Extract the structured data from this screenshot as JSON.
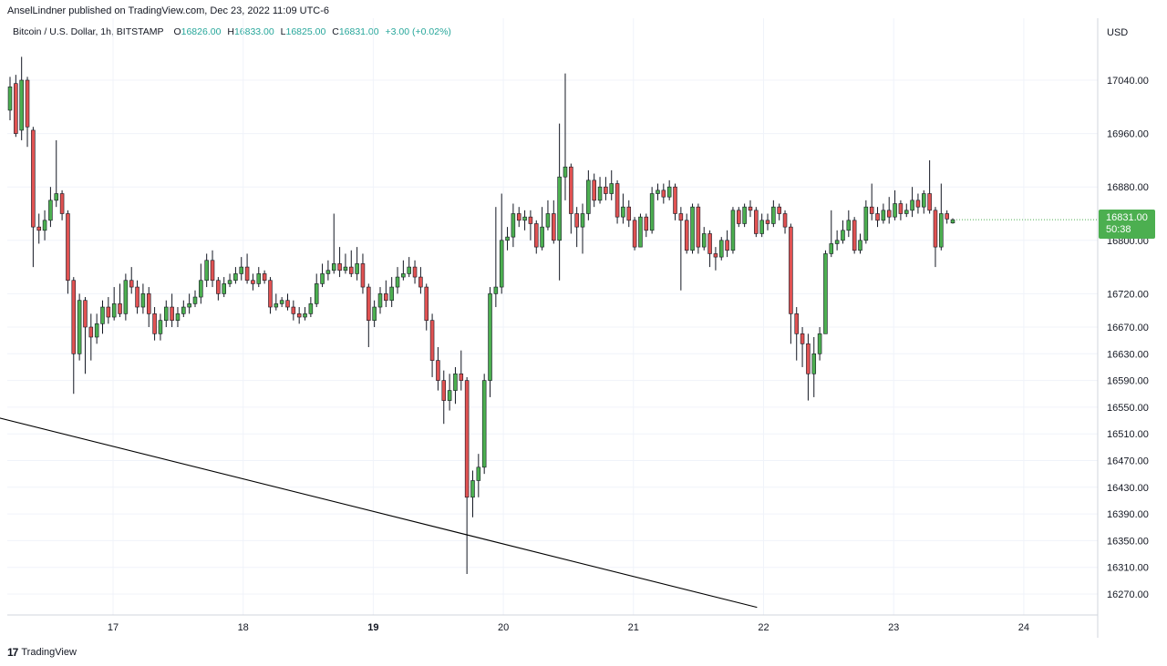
{
  "header": {
    "publisher_line": "AnselLindner published on TradingView.com, Dec 23, 2022 11:09 UTC-6"
  },
  "legend": {
    "symbol": "Bitcoin / U.S. Dollar, 1h, BITSTAMP",
    "open_label": "O",
    "open": "16826.00",
    "high_label": "H",
    "high": "16833.00",
    "low_label": "L",
    "low": "16825.00",
    "close_label": "C",
    "close": "16831.00",
    "change": "+3.00 (+0.02%)"
  },
  "axis": {
    "currency": "USD"
  },
  "last_price": {
    "price": "16831.00",
    "countdown": "50:38"
  },
  "footer": {
    "brand": "TradingView",
    "logo_mark": "17"
  },
  "colors": {
    "up": "#4caf50",
    "down": "#e05252",
    "grid": "#f0f3fa",
    "trendline": "#000000"
  },
  "chart_data": {
    "type": "candlestick",
    "y_ticks": [
      "17040.00",
      "16960.00",
      "16880.00",
      "16800.00",
      "16720.00",
      "16670.00",
      "16630.00",
      "16590.00",
      "16550.00",
      "16510.00",
      "16470.00",
      "16430.00",
      "16390.00",
      "16350.00",
      "16310.00",
      "16270.00"
    ],
    "x_ticks": [
      {
        "label": "17",
        "bold": false
      },
      {
        "label": "18",
        "bold": false
      },
      {
        "label": "19",
        "bold": true
      },
      {
        "label": "20",
        "bold": false
      },
      {
        "label": "21",
        "bold": false
      },
      {
        "label": "22",
        "bold": false
      },
      {
        "label": "23",
        "bold": false
      },
      {
        "label": "24",
        "bold": false
      }
    ],
    "trendline": {
      "from": {
        "day": 16.0,
        "price": 16540
      },
      "to": {
        "day": 21.95,
        "price": 16250
      }
    },
    "candles": [
      {
        "o": 16995,
        "c": 17030,
        "h": 17045,
        "l": 16980
      },
      {
        "o": 17035,
        "c": 16960,
        "h": 17048,
        "l": 16955
      },
      {
        "o": 16965,
        "c": 17040,
        "h": 17075,
        "l": 16950
      },
      {
        "o": 17040,
        "c": 16970,
        "h": 17045,
        "l": 16940
      },
      {
        "o": 16965,
        "c": 16820,
        "h": 16970,
        "l": 16760
      },
      {
        "o": 16820,
        "c": 16815,
        "h": 16840,
        "l": 16795
      },
      {
        "o": 16815,
        "c": 16830,
        "h": 16845,
        "l": 16800
      },
      {
        "o": 16830,
        "c": 16860,
        "h": 16880,
        "l": 16820
      },
      {
        "o": 16860,
        "c": 16870,
        "h": 16950,
        "l": 16850
      },
      {
        "o": 16870,
        "c": 16840,
        "h": 16875,
        "l": 16830
      },
      {
        "o": 16840,
        "c": 16740,
        "h": 16845,
        "l": 16720
      },
      {
        "o": 16740,
        "c": 16630,
        "h": 16745,
        "l": 16570
      },
      {
        "o": 16630,
        "c": 16710,
        "h": 16720,
        "l": 16620
      },
      {
        "o": 16710,
        "c": 16670,
        "h": 16715,
        "l": 16600
      },
      {
        "o": 16670,
        "c": 16655,
        "h": 16690,
        "l": 16620
      },
      {
        "o": 16655,
        "c": 16675,
        "h": 16690,
        "l": 16645
      },
      {
        "o": 16675,
        "c": 16700,
        "h": 16710,
        "l": 16660
      },
      {
        "o": 16700,
        "c": 16685,
        "h": 16715,
        "l": 16675
      },
      {
        "o": 16685,
        "c": 16705,
        "h": 16730,
        "l": 16680
      },
      {
        "o": 16705,
        "c": 16690,
        "h": 16735,
        "l": 16685
      },
      {
        "o": 16690,
        "c": 16740,
        "h": 16750,
        "l": 16680
      },
      {
        "o": 16740,
        "c": 16730,
        "h": 16760,
        "l": 16720
      },
      {
        "o": 16730,
        "c": 16700,
        "h": 16740,
        "l": 16690
      },
      {
        "o": 16700,
        "c": 16720,
        "h": 16735,
        "l": 16690
      },
      {
        "o": 16720,
        "c": 16690,
        "h": 16730,
        "l": 16670
      },
      {
        "o": 16690,
        "c": 16660,
        "h": 16700,
        "l": 16650
      },
      {
        "o": 16660,
        "c": 16680,
        "h": 16690,
        "l": 16650
      },
      {
        "o": 16680,
        "c": 16700,
        "h": 16710,
        "l": 16670
      },
      {
        "o": 16700,
        "c": 16680,
        "h": 16720,
        "l": 16670
      },
      {
        "o": 16680,
        "c": 16690,
        "h": 16700,
        "l": 16670
      },
      {
        "o": 16690,
        "c": 16700,
        "h": 16710,
        "l": 16685
      },
      {
        "o": 16700,
        "c": 16705,
        "h": 16720,
        "l": 16690
      },
      {
        "o": 16705,
        "c": 16715,
        "h": 16725,
        "l": 16700
      },
      {
        "o": 16715,
        "c": 16740,
        "h": 16765,
        "l": 16705
      },
      {
        "o": 16740,
        "c": 16770,
        "h": 16780,
        "l": 16730
      },
      {
        "o": 16770,
        "c": 16740,
        "h": 16785,
        "l": 16730
      },
      {
        "o": 16740,
        "c": 16720,
        "h": 16745,
        "l": 16710
      },
      {
        "o": 16720,
        "c": 16735,
        "h": 16745,
        "l": 16715
      },
      {
        "o": 16735,
        "c": 16740,
        "h": 16750,
        "l": 16730
      },
      {
        "o": 16740,
        "c": 16750,
        "h": 16760,
        "l": 16735
      },
      {
        "o": 16750,
        "c": 16760,
        "h": 16775,
        "l": 16740
      },
      {
        "o": 16760,
        "c": 16740,
        "h": 16780,
        "l": 16735
      },
      {
        "o": 16740,
        "c": 16735,
        "h": 16750,
        "l": 16725
      },
      {
        "o": 16735,
        "c": 16750,
        "h": 16760,
        "l": 16730
      },
      {
        "o": 16750,
        "c": 16740,
        "h": 16755,
        "l": 16735
      },
      {
        "o": 16740,
        "c": 16700,
        "h": 16745,
        "l": 16690
      },
      {
        "o": 16700,
        "c": 16705,
        "h": 16720,
        "l": 16695
      },
      {
        "o": 16705,
        "c": 16710,
        "h": 16715,
        "l": 16700
      },
      {
        "o": 16710,
        "c": 16700,
        "h": 16720,
        "l": 16695
      },
      {
        "o": 16700,
        "c": 16690,
        "h": 16710,
        "l": 16680
      },
      {
        "o": 16690,
        "c": 16685,
        "h": 16700,
        "l": 16675
      },
      {
        "o": 16685,
        "c": 16690,
        "h": 16700,
        "l": 16680
      },
      {
        "o": 16690,
        "c": 16705,
        "h": 16715,
        "l": 16685
      },
      {
        "o": 16705,
        "c": 16735,
        "h": 16750,
        "l": 16700
      },
      {
        "o": 16735,
        "c": 16750,
        "h": 16765,
        "l": 16730
      },
      {
        "o": 16750,
        "c": 16755,
        "h": 16770,
        "l": 16740
      },
      {
        "o": 16755,
        "c": 16765,
        "h": 16840,
        "l": 16750
      },
      {
        "o": 16765,
        "c": 16755,
        "h": 16790,
        "l": 16745
      },
      {
        "o": 16755,
        "c": 16760,
        "h": 16780,
        "l": 16750
      },
      {
        "o": 16760,
        "c": 16750,
        "h": 16785,
        "l": 16745
      },
      {
        "o": 16750,
        "c": 16765,
        "h": 16790,
        "l": 16740
      },
      {
        "o": 16765,
        "c": 16730,
        "h": 16780,
        "l": 16720
      },
      {
        "o": 16730,
        "c": 16680,
        "h": 16735,
        "l": 16640
      },
      {
        "o": 16680,
        "c": 16700,
        "h": 16710,
        "l": 16670
      },
      {
        "o": 16700,
        "c": 16720,
        "h": 16730,
        "l": 16690
      },
      {
        "o": 16720,
        "c": 16710,
        "h": 16740,
        "l": 16700
      },
      {
        "o": 16710,
        "c": 16730,
        "h": 16745,
        "l": 16700
      },
      {
        "o": 16730,
        "c": 16745,
        "h": 16760,
        "l": 16720
      },
      {
        "o": 16745,
        "c": 16750,
        "h": 16770,
        "l": 16740
      },
      {
        "o": 16750,
        "c": 16760,
        "h": 16775,
        "l": 16745
      },
      {
        "o": 16760,
        "c": 16745,
        "h": 16770,
        "l": 16735
      },
      {
        "o": 16745,
        "c": 16730,
        "h": 16760,
        "l": 16720
      },
      {
        "o": 16730,
        "c": 16680,
        "h": 16735,
        "l": 16665
      },
      {
        "o": 16680,
        "c": 16620,
        "h": 16690,
        "l": 16595
      },
      {
        "o": 16620,
        "c": 16590,
        "h": 16640,
        "l": 16575
      },
      {
        "o": 16590,
        "c": 16560,
        "h": 16605,
        "l": 16525
      },
      {
        "o": 16560,
        "c": 16575,
        "h": 16600,
        "l": 16545
      },
      {
        "o": 16575,
        "c": 16600,
        "h": 16610,
        "l": 16555
      },
      {
        "o": 16600,
        "c": 16590,
        "h": 16635,
        "l": 16575
      },
      {
        "o": 16590,
        "c": 16415,
        "h": 16595,
        "l": 16300
      },
      {
        "o": 16415,
        "c": 16440,
        "h": 16455,
        "l": 16385
      },
      {
        "o": 16440,
        "c": 16460,
        "h": 16480,
        "l": 16415
      },
      {
        "o": 16460,
        "c": 16590,
        "h": 16600,
        "l": 16450
      },
      {
        "o": 16590,
        "c": 16720,
        "h": 16730,
        "l": 16565
      },
      {
        "o": 16720,
        "c": 16730,
        "h": 16850,
        "l": 16700
      },
      {
        "o": 16730,
        "c": 16800,
        "h": 16870,
        "l": 16720
      },
      {
        "o": 16800,
        "c": 16805,
        "h": 16820,
        "l": 16785
      },
      {
        "o": 16805,
        "c": 16840,
        "h": 16855,
        "l": 16790
      },
      {
        "o": 16840,
        "c": 16830,
        "h": 16850,
        "l": 16820
      },
      {
        "o": 16830,
        "c": 16835,
        "h": 16845,
        "l": 16815
      },
      {
        "o": 16835,
        "c": 16825,
        "h": 16845,
        "l": 16800
      },
      {
        "o": 16825,
        "c": 16790,
        "h": 16830,
        "l": 16780
      },
      {
        "o": 16790,
        "c": 16820,
        "h": 16850,
        "l": 16785
      },
      {
        "o": 16820,
        "c": 16840,
        "h": 16860,
        "l": 16815
      },
      {
        "o": 16840,
        "c": 16800,
        "h": 16860,
        "l": 16795
      },
      {
        "o": 16800,
        "c": 16895,
        "h": 16975,
        "l": 16740
      },
      {
        "o": 16895,
        "c": 16910,
        "h": 17050,
        "l": 16860
      },
      {
        "o": 16910,
        "c": 16840,
        "h": 16915,
        "l": 16810
      },
      {
        "o": 16840,
        "c": 16820,
        "h": 16850,
        "l": 16790
      },
      {
        "o": 16820,
        "c": 16840,
        "h": 16855,
        "l": 16780
      },
      {
        "o": 16840,
        "c": 16890,
        "h": 16905,
        "l": 16830
      },
      {
        "o": 16890,
        "c": 16860,
        "h": 16900,
        "l": 16850
      },
      {
        "o": 16860,
        "c": 16880,
        "h": 16895,
        "l": 16855
      },
      {
        "o": 16880,
        "c": 16870,
        "h": 16895,
        "l": 16860
      },
      {
        "o": 16870,
        "c": 16885,
        "h": 16905,
        "l": 16860
      },
      {
        "o": 16885,
        "c": 16835,
        "h": 16890,
        "l": 16825
      },
      {
        "o": 16835,
        "c": 16850,
        "h": 16870,
        "l": 16825
      },
      {
        "o": 16850,
        "c": 16830,
        "h": 16860,
        "l": 16820
      },
      {
        "o": 16830,
        "c": 16790,
        "h": 16835,
        "l": 16785
      },
      {
        "o": 16790,
        "c": 16835,
        "h": 16840,
        "l": 16790
      },
      {
        "o": 16835,
        "c": 16815,
        "h": 16840,
        "l": 16805
      },
      {
        "o": 16815,
        "c": 16870,
        "h": 16880,
        "l": 16810
      },
      {
        "o": 16870,
        "c": 16875,
        "h": 16885,
        "l": 16860
      },
      {
        "o": 16875,
        "c": 16865,
        "h": 16885,
        "l": 16855
      },
      {
        "o": 16865,
        "c": 16880,
        "h": 16890,
        "l": 16860
      },
      {
        "o": 16880,
        "c": 16840,
        "h": 16885,
        "l": 16830
      },
      {
        "o": 16840,
        "c": 16830,
        "h": 16850,
        "l": 16725
      },
      {
        "o": 16830,
        "c": 16785,
        "h": 16840,
        "l": 16780
      },
      {
        "o": 16785,
        "c": 16850,
        "h": 16855,
        "l": 16780
      },
      {
        "o": 16850,
        "c": 16790,
        "h": 16855,
        "l": 16780
      },
      {
        "o": 16790,
        "c": 16810,
        "h": 16820,
        "l": 16785
      },
      {
        "o": 16810,
        "c": 16780,
        "h": 16815,
        "l": 16760
      },
      {
        "o": 16780,
        "c": 16775,
        "h": 16790,
        "l": 16755
      },
      {
        "o": 16775,
        "c": 16800,
        "h": 16805,
        "l": 16770
      },
      {
        "o": 16800,
        "c": 16785,
        "h": 16815,
        "l": 16775
      },
      {
        "o": 16785,
        "c": 16845,
        "h": 16850,
        "l": 16780
      },
      {
        "o": 16845,
        "c": 16825,
        "h": 16850,
        "l": 16820
      },
      {
        "o": 16825,
        "c": 16850,
        "h": 16855,
        "l": 16820
      },
      {
        "o": 16850,
        "c": 16845,
        "h": 16860,
        "l": 16835
      },
      {
        "o": 16845,
        "c": 16810,
        "h": 16850,
        "l": 16805
      },
      {
        "o": 16810,
        "c": 16830,
        "h": 16840,
        "l": 16805
      },
      {
        "o": 16830,
        "c": 16825,
        "h": 16840,
        "l": 16815
      },
      {
        "o": 16825,
        "c": 16850,
        "h": 16860,
        "l": 16820
      },
      {
        "o": 16850,
        "c": 16840,
        "h": 16855,
        "l": 16830
      },
      {
        "o": 16840,
        "c": 16820,
        "h": 16845,
        "l": 16810
      },
      {
        "o": 16820,
        "c": 16690,
        "h": 16825,
        "l": 16645
      },
      {
        "o": 16690,
        "c": 16660,
        "h": 16700,
        "l": 16620
      },
      {
        "o": 16660,
        "c": 16645,
        "h": 16670,
        "l": 16610
      },
      {
        "o": 16645,
        "c": 16600,
        "h": 16660,
        "l": 16560
      },
      {
        "o": 16600,
        "c": 16630,
        "h": 16655,
        "l": 16565
      },
      {
        "o": 16630,
        "c": 16660,
        "h": 16670,
        "l": 16620
      },
      {
        "o": 16660,
        "c": 16780,
        "h": 16785,
        "l": 16660
      },
      {
        "o": 16780,
        "c": 16795,
        "h": 16845,
        "l": 16775
      },
      {
        "o": 16795,
        "c": 16800,
        "h": 16815,
        "l": 16785
      },
      {
        "o": 16800,
        "c": 16815,
        "h": 16830,
        "l": 16795
      },
      {
        "o": 16815,
        "c": 16830,
        "h": 16845,
        "l": 16805
      },
      {
        "o": 16830,
        "c": 16785,
        "h": 16835,
        "l": 16780
      },
      {
        "o": 16785,
        "c": 16800,
        "h": 16810,
        "l": 16780
      },
      {
        "o": 16800,
        "c": 16850,
        "h": 16860,
        "l": 16795
      },
      {
        "o": 16850,
        "c": 16840,
        "h": 16885,
        "l": 16830
      },
      {
        "o": 16840,
        "c": 16830,
        "h": 16850,
        "l": 16820
      },
      {
        "o": 16830,
        "c": 16845,
        "h": 16855,
        "l": 16825
      },
      {
        "o": 16845,
        "c": 16835,
        "h": 16865,
        "l": 16825
      },
      {
        "o": 16835,
        "c": 16855,
        "h": 16875,
        "l": 16830
      },
      {
        "o": 16855,
        "c": 16840,
        "h": 16860,
        "l": 16830
      },
      {
        "o": 16840,
        "c": 16845,
        "h": 16855,
        "l": 16835
      },
      {
        "o": 16845,
        "c": 16860,
        "h": 16880,
        "l": 16835
      },
      {
        "o": 16860,
        "c": 16850,
        "h": 16870,
        "l": 16840
      },
      {
        "o": 16850,
        "c": 16870,
        "h": 16875,
        "l": 16840
      },
      {
        "o": 16870,
        "c": 16845,
        "h": 16920,
        "l": 16840
      },
      {
        "o": 16845,
        "c": 16790,
        "h": 16850,
        "l": 16760
      },
      {
        "o": 16790,
        "c": 16840,
        "h": 16885,
        "l": 16785
      },
      {
        "o": 16840,
        "c": 16832,
        "h": 16845,
        "l": 16825
      },
      {
        "o": 16826,
        "c": 16831,
        "h": 16833,
        "l": 16825
      }
    ]
  }
}
